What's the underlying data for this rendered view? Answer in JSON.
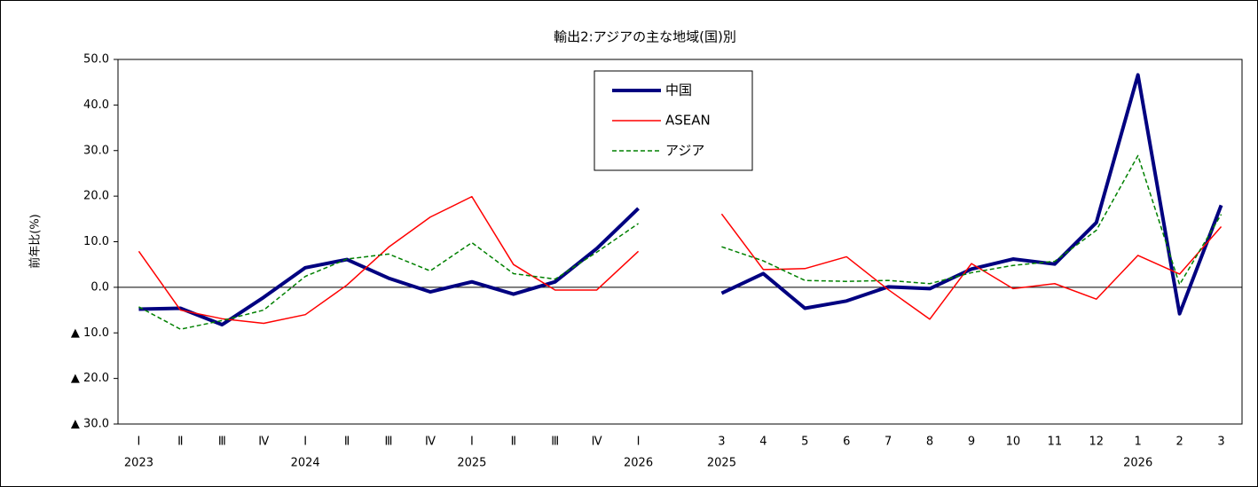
{
  "chart_data": {
    "type": "line",
    "title": "輸出2:アジアの主な地域(国)別",
    "y_label": "前年比(%)",
    "categories": [
      "Ⅰ",
      "Ⅱ",
      "Ⅲ",
      "Ⅳ",
      "Ⅰ",
      "Ⅱ",
      "Ⅲ",
      "Ⅳ",
      "Ⅰ",
      "Ⅱ",
      "Ⅲ",
      "Ⅳ",
      "Ⅰ",
      null,
      "3",
      "4",
      "5",
      "6",
      "7",
      "8",
      "9",
      "10",
      "11",
      "12",
      "1",
      "2",
      "3"
    ],
    "year_labels": [
      "2023",
      null,
      null,
      null,
      "2024",
      null,
      null,
      null,
      "2025",
      null,
      null,
      null,
      "2026",
      null,
      "2025",
      null,
      null,
      null,
      null,
      null,
      null,
      null,
      null,
      null,
      "2026",
      null,
      null
    ],
    "series": [
      {
        "name": "中国",
        "color": "#000080",
        "width": 4,
        "dashed": false,
        "values": [
          -4.8,
          -4.6,
          -8.2,
          -2.2,
          4.3,
          6.1,
          2.0,
          -1.0,
          1.2,
          -1.5,
          1.2,
          8.5,
          17.3,
          null,
          -1.3,
          3.0,
          -4.6,
          -3.0,
          0.1,
          -0.3,
          4.0,
          6.2,
          5.1,
          14.2,
          46.6,
          -5.8,
          18.0
        ]
      },
      {
        "name": "ASEAN",
        "color": "#ff0000",
        "width": 1.5,
        "dashed": false,
        "values": [
          7.9,
          -5.0,
          -6.9,
          -7.9,
          -6.0,
          0.5,
          8.8,
          15.4,
          19.9,
          5.0,
          -0.6,
          -0.6,
          7.9,
          null,
          16.1,
          3.9,
          4.1,
          6.7,
          -0.5,
          -7.0,
          5.2,
          -0.3,
          0.8,
          -2.6,
          7.0,
          2.9,
          13.3
        ]
      },
      {
        "name": "アジア",
        "color": "#008000",
        "width": 1.5,
        "dashed": true,
        "values": [
          -4.3,
          -9.2,
          -7.3,
          -5.0,
          2.4,
          6.2,
          7.3,
          3.6,
          9.8,
          3.0,
          1.8,
          7.7,
          14.0,
          null,
          8.9,
          5.8,
          1.5,
          1.3,
          1.5,
          0.8,
          3.2,
          4.8,
          5.7,
          12.5,
          28.9,
          0.6,
          16.0
        ]
      }
    ],
    "ylim": [
      -30,
      50
    ],
    "yticks": [
      {
        "value": 50,
        "label": "50.0"
      },
      {
        "value": 40,
        "label": "40.0"
      },
      {
        "value": 30,
        "label": "30.0"
      },
      {
        "value": 20,
        "label": "20.0"
      },
      {
        "value": 10,
        "label": "10.0"
      },
      {
        "value": 0,
        "label": "0.0"
      },
      {
        "value": -10,
        "label": "▲ 10.0"
      },
      {
        "value": -20,
        "label": "▲ 20.0"
      },
      {
        "value": -30,
        "label": "▲ 30.0"
      }
    ],
    "grid": false
  }
}
